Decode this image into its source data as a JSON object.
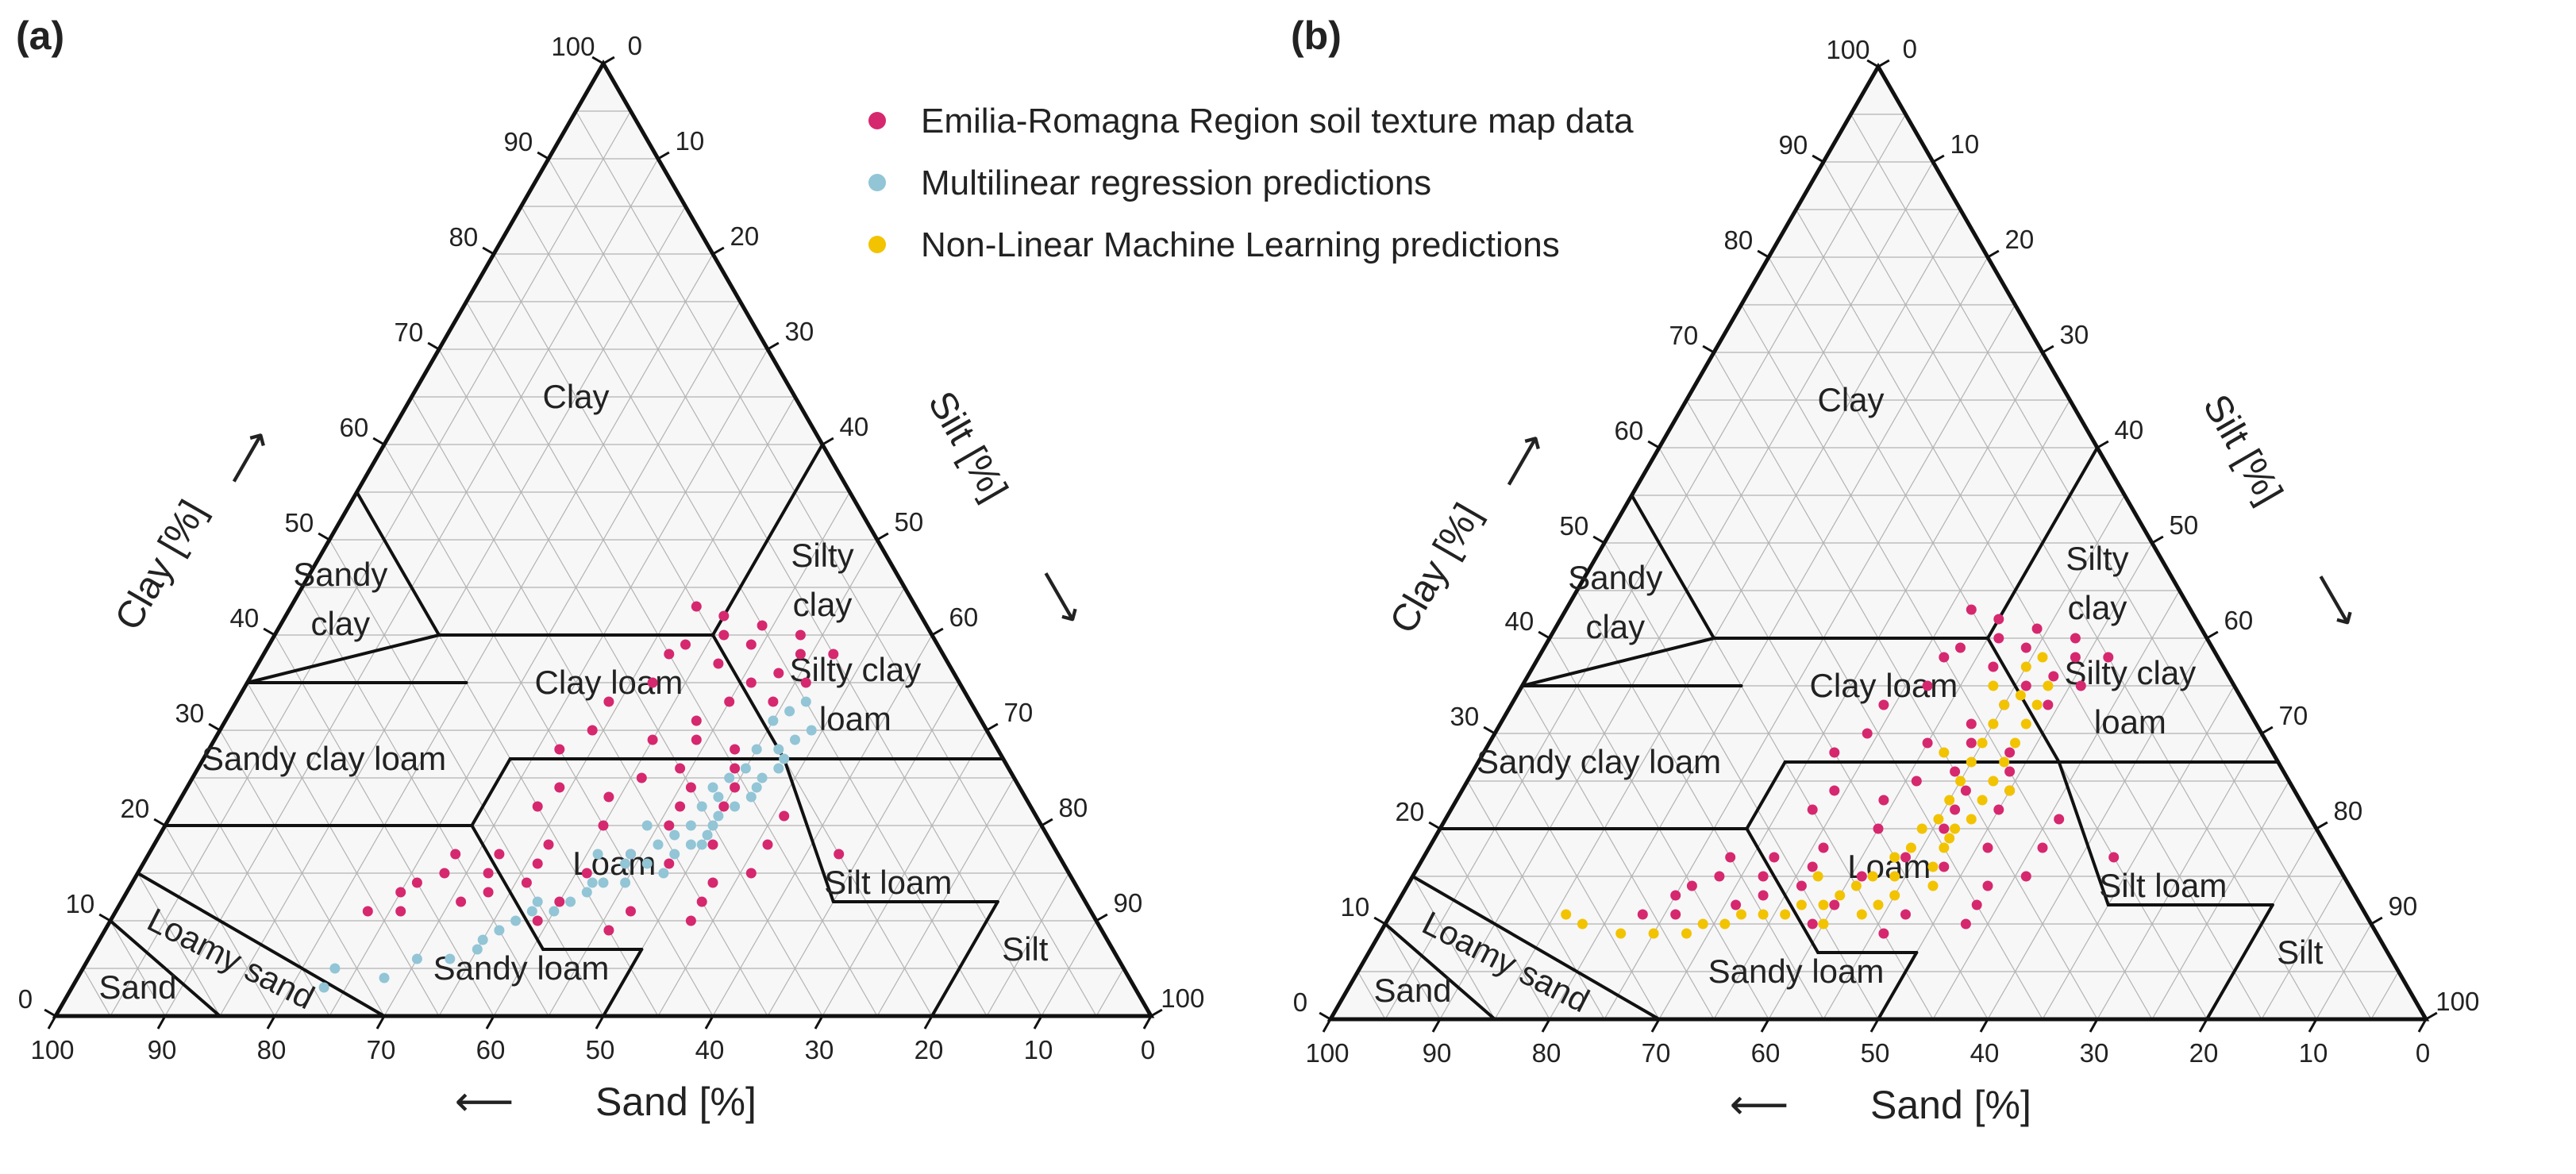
{
  "chart_data": [
    {
      "type": "scatter",
      "panel_label": "(a)",
      "title": "",
      "xlabel": "Sand [%]",
      "ylabel": "Clay [%]",
      "third_axis_label": "Silt [%]",
      "axis_ticks": [
        "0",
        "10",
        "20",
        "30",
        "40",
        "50",
        "60",
        "70",
        "80",
        "90",
        "100"
      ],
      "regions": [
        "Clay",
        "Silty clay",
        "Sandy clay",
        "Clay loam",
        "Silty clay loam",
        "Sandy clay loam",
        "Loam",
        "Silt loam",
        "Loamy sand",
        "Sandy loam",
        "Sand",
        "Silt"
      ],
      "series": [
        {
          "name": "Emilia-Romagna Region soil texture map data",
          "color": "#d6286e",
          "points": [
            [
              15,
              41
            ],
            [
              17,
              39
            ],
            [
              19,
              40
            ],
            [
              13,
              38
            ],
            [
              21,
              37
            ],
            [
              16,
              36
            ],
            [
              23,
              39
            ],
            [
              25,
              38
            ],
            [
              19,
              35
            ],
            [
              28,
              35
            ],
            [
              22,
              33
            ],
            [
              33,
              33
            ],
            [
              26,
              31
            ],
            [
              31,
              29
            ],
            [
              24,
              28
            ],
            [
              36,
              30
            ],
            [
              30,
              26
            ],
            [
              34,
              25
            ],
            [
              40,
              28
            ],
            [
              26,
              24
            ],
            [
              38,
              23
            ],
            [
              28,
              22
            ],
            [
              34,
              20
            ],
            [
              31,
              18
            ],
            [
              36,
              16
            ],
            [
              42,
              24
            ],
            [
              40,
              20
            ],
            [
              45,
              22
            ],
            [
              39,
              17
            ],
            [
              46,
              18
            ],
            [
              48,
              16
            ],
            [
              51,
              17
            ],
            [
              44,
              15
            ],
            [
              50,
              14
            ],
            [
              53,
              15
            ],
            [
              55,
              17
            ],
            [
              57,
              15
            ],
            [
              54,
              13
            ],
            [
              60,
              14
            ],
            [
              57,
              12
            ],
            [
              62,
              13
            ],
            [
              48,
              12
            ],
            [
              23,
              21
            ],
            [
              20,
              17
            ],
            [
              29,
              15
            ],
            [
              33,
              14
            ],
            [
              26,
              18
            ],
            [
              35,
              12
            ],
            [
              42,
              11
            ],
            [
              37,
              10
            ],
            [
              63,
              11
            ],
            [
              66,
              11
            ],
            [
              51,
              10
            ],
            [
              45,
              9
            ],
            [
              32,
              22
            ],
            [
              25,
              26
            ],
            [
              18,
              33
            ],
            [
              14,
              35
            ],
            [
              12,
              40
            ],
            [
              20,
              43
            ],
            [
              18,
              42
            ],
            [
              10,
              38
            ],
            [
              27,
              29
            ],
            [
              30,
              24
            ]
          ]
        },
        {
          "name": "Multilinear regression predictions",
          "color": "#92c5d6",
          "points": [
            [
              15,
              33
            ],
            [
              17,
              32
            ],
            [
              16,
              30
            ],
            [
              19,
              31
            ],
            [
              18,
              29
            ],
            [
              20,
              28
            ],
            [
              22,
              28
            ],
            [
              21,
              26
            ],
            [
              24,
              26
            ],
            [
              23,
              25
            ],
            [
              26,
              25
            ],
            [
              25,
              23
            ],
            [
              28,
              23
            ],
            [
              27,
              22
            ],
            [
              30,
              22
            ],
            [
              29,
              21
            ],
            [
              32,
              20
            ],
            [
              31,
              19
            ],
            [
              34,
              19
            ],
            [
              33,
              18
            ],
            [
              36,
              18
            ],
            [
              35,
              17
            ],
            [
              38,
              16
            ],
            [
              37,
              15
            ],
            [
              40,
              16
            ],
            [
              41,
              14
            ],
            [
              43,
              14
            ],
            [
              45,
              13
            ],
            [
              47,
              12
            ],
            [
              49,
              11
            ],
            [
              51,
              11
            ],
            [
              53,
              10
            ],
            [
              55,
              9
            ],
            [
              57,
              8
            ],
            [
              58,
              7
            ],
            [
              61,
              6
            ],
            [
              64,
              6
            ],
            [
              68,
              4
            ],
            [
              72,
              5
            ],
            [
              74,
              3
            ],
            [
              20,
              27
            ],
            [
              24,
              24
            ],
            [
              28,
              24
            ],
            [
              32,
              18
            ],
            [
              36,
              20
            ],
            [
              39,
              17
            ],
            [
              44,
              14
            ],
            [
              50,
              12
            ],
            [
              30,
              20
            ],
            [
              42,
              17
            ]
          ]
        },
        {
          "name": "Non-Linear Machine Learning predictions",
          "color": "#f2c300",
          "points": []
        }
      ]
    },
    {
      "type": "scatter",
      "panel_label": "(b)",
      "title": "",
      "xlabel": "Sand [%]",
      "ylabel": "Clay [%]",
      "third_axis_label": "Silt [%]",
      "axis_ticks": [
        "0",
        "10",
        "20",
        "30",
        "40",
        "50",
        "60",
        "70",
        "80",
        "90",
        "100"
      ],
      "regions": [
        "Clay",
        "Silty clay",
        "Sandy clay",
        "Clay loam",
        "Silty clay loam",
        "Sandy clay loam",
        "Loam",
        "Silt loam",
        "Loamy sand",
        "Sandy loam",
        "Sand",
        "Silt"
      ],
      "series": [
        {
          "name": "Emilia-Romagna Region soil texture map data",
          "color": "#d6286e",
          "points": [
            [
              15,
              41
            ],
            [
              17,
              39
            ],
            [
              19,
              40
            ],
            [
              13,
              38
            ],
            [
              21,
              37
            ],
            [
              16,
              36
            ],
            [
              23,
              39
            ],
            [
              25,
              38
            ],
            [
              19,
              35
            ],
            [
              28,
              35
            ],
            [
              22,
              33
            ],
            [
              33,
              33
            ],
            [
              26,
              31
            ],
            [
              31,
              29
            ],
            [
              24,
              28
            ],
            [
              36,
              30
            ],
            [
              30,
              26
            ],
            [
              34,
              25
            ],
            [
              40,
              28
            ],
            [
              26,
              24
            ],
            [
              38,
              23
            ],
            [
              28,
              22
            ],
            [
              34,
              20
            ],
            [
              31,
              18
            ],
            [
              36,
              16
            ],
            [
              42,
              24
            ],
            [
              40,
              20
            ],
            [
              45,
              22
            ],
            [
              39,
              17
            ],
            [
              46,
              18
            ],
            [
              48,
              16
            ],
            [
              51,
              17
            ],
            [
              44,
              15
            ],
            [
              50,
              14
            ],
            [
              53,
              15
            ],
            [
              55,
              17
            ],
            [
              57,
              15
            ],
            [
              54,
              13
            ],
            [
              60,
              14
            ],
            [
              57,
              12
            ],
            [
              62,
              13
            ],
            [
              48,
              12
            ],
            [
              23,
              21
            ],
            [
              20,
              17
            ],
            [
              29,
              15
            ],
            [
              33,
              14
            ],
            [
              26,
              18
            ],
            [
              35,
              12
            ],
            [
              42,
              11
            ],
            [
              37,
              10
            ],
            [
              63,
              11
            ],
            [
              66,
              11
            ],
            [
              51,
              10
            ],
            [
              45,
              9
            ],
            [
              32,
              22
            ],
            [
              25,
              26
            ],
            [
              18,
              33
            ],
            [
              14,
              35
            ],
            [
              12,
              40
            ],
            [
              20,
              43
            ],
            [
              18,
              42
            ],
            [
              10,
              38
            ],
            [
              27,
              29
            ],
            [
              30,
              24
            ]
          ]
        },
        {
          "name": "Multilinear regression predictions",
          "color": "#92c5d6",
          "points": []
        },
        {
          "name": "Non-Linear Machine Learning predictions",
          "color": "#f2c300",
          "points": [
            [
              16,
              38
            ],
            [
              18,
              37
            ],
            [
              17,
              35
            ],
            [
              20,
              34
            ],
            [
              19,
              33
            ],
            [
              22,
              33
            ],
            [
              21,
              31
            ],
            [
              24,
              31
            ],
            [
              23,
              29
            ],
            [
              26,
              29
            ],
            [
              25,
              27
            ],
            [
              28,
              27
            ],
            [
              27,
              25
            ],
            [
              30,
              25
            ],
            [
              29,
              23
            ],
            [
              32,
              23
            ],
            [
              31,
              21
            ],
            [
              34,
              21
            ],
            [
              33,
              20
            ],
            [
              36,
              20
            ],
            [
              35,
              18
            ],
            [
              38,
              18
            ],
            [
              37,
              16
            ],
            [
              40,
              17
            ],
            [
              41,
              15
            ],
            [
              43,
              15
            ],
            [
              42,
              13
            ],
            [
              45,
              14
            ],
            [
              47,
              13
            ],
            [
              46,
              11
            ],
            [
              49,
              12
            ],
            [
              51,
              12
            ],
            [
              50,
              10
            ],
            [
              53,
              11
            ],
            [
              55,
              11
            ],
            [
              57,
              11
            ],
            [
              59,
              10
            ],
            [
              61,
              10
            ],
            [
              63,
              9
            ],
            [
              66,
              9
            ],
            [
              69,
              9
            ],
            [
              72,
              10
            ],
            [
              73,
              11
            ],
            [
              26,
              24
            ],
            [
              34,
              19
            ],
            [
              38,
              14
            ],
            [
              30,
              28
            ],
            [
              22,
              35
            ],
            [
              44,
              12
            ],
            [
              48,
              15
            ]
          ]
        }
      ]
    }
  ],
  "legend": {
    "items": [
      {
        "label": "Emilia-Romagna Region soil texture map data",
        "color": "#d6286e"
      },
      {
        "label": "Multilinear regression predictions",
        "color": "#92c5d6"
      },
      {
        "label": "Non-Linear Machine Learning predictions",
        "color": "#f2c300"
      }
    ]
  },
  "arrows": {
    "clay": "⟶",
    "silt": "⟶",
    "sand": "⟵"
  }
}
